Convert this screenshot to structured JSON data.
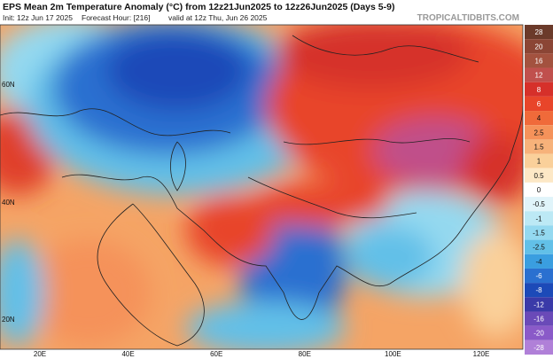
{
  "header": {
    "title": "EPS Mean 2m Temperature Anomaly (°C) from 12z21Jun2025 to 12z26Jun2025 (Days 5-9)",
    "init": "Init: 12z Jun 17 2025",
    "forecast_hour": "Forecast Hour: [216]",
    "valid": "valid at 12z Thu, Jun 26 2025",
    "watermark": "TROPICALTIDBITS.COM"
  },
  "map": {
    "lat_labels": [
      "60N",
      "40N",
      "20N"
    ],
    "lon_labels": [
      "20E",
      "40E",
      "60E",
      "80E",
      "100E",
      "120E"
    ]
  },
  "colorbar": {
    "labels": [
      28,
      20,
      16,
      12,
      8,
      6,
      4,
      2.5,
      1.5,
      1,
      0.5,
      0,
      -0.5,
      -1,
      -1.5,
      -2.5,
      -4,
      -6,
      -8,
      -12,
      -16,
      -20,
      -28
    ],
    "colors": [
      "#6b3a2a",
      "#8b4535",
      "#a3523f",
      "#c0504d",
      "#d6302a",
      "#e8452a",
      "#f06a3a",
      "#f5925a",
      "#f7b27a",
      "#fad09a",
      "#fde8c6",
      "#ffffff",
      "#e0f4fa",
      "#bce9f5",
      "#94d9f0",
      "#62c0e8",
      "#3a9ee0",
      "#2a70d0",
      "#1c4ab8",
      "#3a3aa8",
      "#6a4ab8",
      "#8a5ac8",
      "#b080d8"
    ]
  }
}
